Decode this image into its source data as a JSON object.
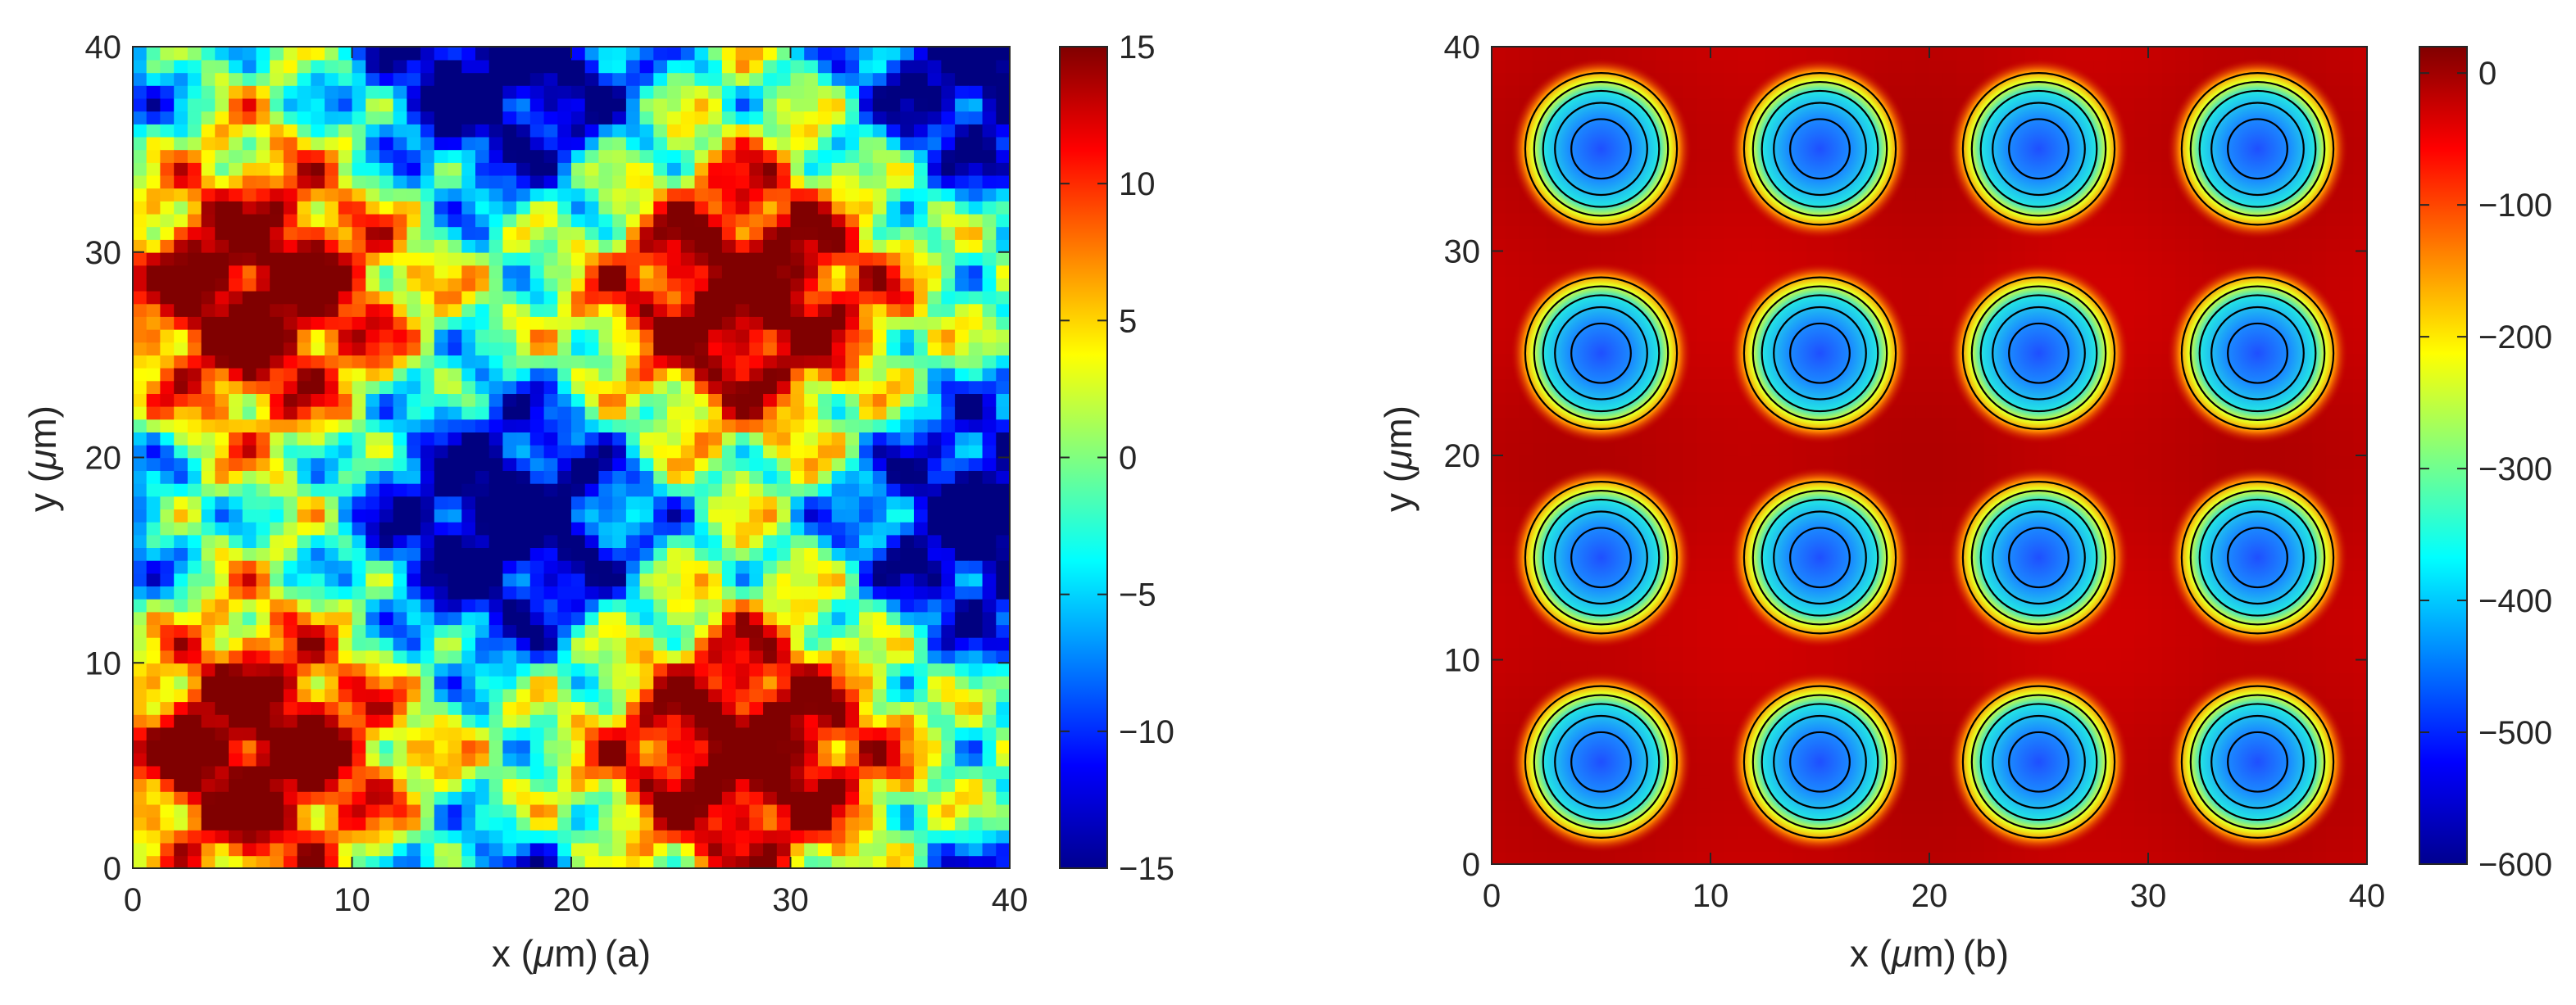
{
  "chart_data": [
    {
      "type": "heatmap",
      "title": "",
      "xlabel_parts": [
        "x (",
        "μ",
        "m)",
        "(a)"
      ],
      "ylabel_parts": [
        "y (",
        "μ",
        "m)"
      ],
      "xlim": [
        0,
        40
      ],
      "ylim": [
        0,
        40
      ],
      "xticks": [
        0,
        10,
        20,
        30,
        40
      ],
      "yticks": [
        0,
        10,
        20,
        30,
        40
      ],
      "xtick_labels": [
        "0",
        "10",
        "20",
        "30",
        "40"
      ],
      "ytick_labels": [
        "0",
        "10",
        "20",
        "30",
        "40"
      ],
      "colorbar": {
        "colormap": "jet",
        "range": [
          -15,
          15
        ],
        "ticks": [
          15,
          10,
          5,
          0,
          -5,
          -10,
          -15
        ],
        "tick_labels": [
          "15",
          "10",
          "5",
          "0",
          "−5",
          "−10",
          "−15"
        ]
      },
      "grid": false
    },
    {
      "type": "heatmap",
      "title": "",
      "xlabel_parts": [
        "x (",
        "μ",
        "m)",
        "(b)"
      ],
      "ylabel_parts": [
        "y (",
        "μ",
        "m)"
      ],
      "xlim": [
        0,
        40
      ],
      "ylim": [
        0,
        40
      ],
      "xticks": [
        0,
        10,
        20,
        30,
        40
      ],
      "yticks": [
        0,
        10,
        20,
        30,
        40
      ],
      "xtick_labels": [
        "0",
        "10",
        "20",
        "30",
        "40"
      ],
      "ytick_labels": [
        "0",
        "10",
        "20",
        "30",
        "40"
      ],
      "wells": {
        "x": [
          5,
          15,
          25,
          35
        ],
        "y": [
          5,
          15,
          25,
          35
        ],
        "min_value": -550,
        "background_value": -20
      },
      "contour_lines": true,
      "colorbar": {
        "colormap": "jet",
        "range": [
          -600,
          20
        ],
        "ticks": [
          0,
          -100,
          -200,
          -300,
          -400,
          -500,
          -600
        ],
        "tick_labels": [
          "0",
          "−100",
          "−200",
          "−300",
          "−400",
          "−500",
          "−600"
        ]
      },
      "grid": false
    }
  ]
}
